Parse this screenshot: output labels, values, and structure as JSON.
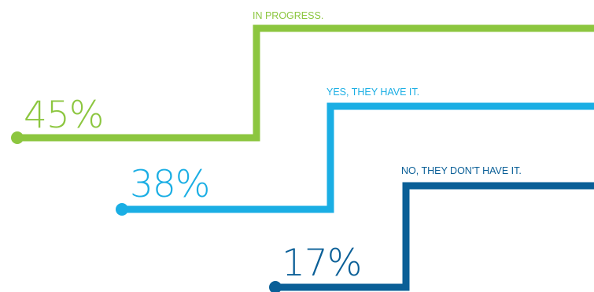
{
  "chart_data": {
    "type": "step-line",
    "unit": "%",
    "series": [
      {
        "label": "IN PROGRESS.",
        "value": 45,
        "value_text": "45%",
        "color": "#8cc63f"
      },
      {
        "label": "YES, THEY HAVE IT.",
        "value": 38,
        "value_text": "38%",
        "color": "#1aaee4"
      },
      {
        "label": "NO, THEY DON'T HAVE IT.",
        "value": 17,
        "value_text": "17%",
        "color": "#0a5f97"
      }
    ]
  }
}
